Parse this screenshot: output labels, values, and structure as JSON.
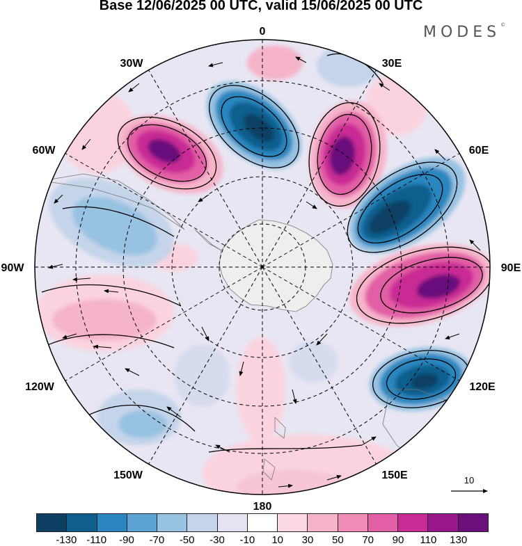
{
  "title": "Base 12/06/2025 00 UTC, valid 15/06/2025 00 UTC",
  "brand": "MODES",
  "brand_mark": "©",
  "longitude_labels": {
    "lon_0": "0",
    "lon_30e": "30E",
    "lon_60e": "60E",
    "lon_90e": "90E",
    "lon_120e": "120E",
    "lon_150e": "150E",
    "lon_180": "180",
    "lon_150w": "150W",
    "lon_120w": "120W",
    "lon_90w": "90W",
    "lon_60w": "60W",
    "lon_30w": "30W"
  },
  "vector_reference": {
    "label": "10"
  },
  "colorbar": {
    "colors": [
      "#0d3f63",
      "#0f5e8e",
      "#2b86bf",
      "#5ca4d3",
      "#97c2e2",
      "#c5d4ea",
      "#e5e3f1",
      "#ffffff",
      "#fbd8e2",
      "#f6b4cb",
      "#f08bb6",
      "#e25ea5",
      "#c92b94",
      "#991789",
      "#6a0f7c"
    ],
    "tick_labels": [
      "-130",
      "-110",
      "-90",
      "-70",
      "-50",
      "-30",
      "-10",
      "10",
      "30",
      "50",
      "70",
      "90",
      "110",
      "130"
    ]
  },
  "anomaly_centers": [
    {
      "name": "anticyclonic-30w",
      "value": 120
    },
    {
      "name": "cyclonic-0",
      "value": -125
    },
    {
      "name": "anticyclonic-30e",
      "value": 130
    },
    {
      "name": "cyclonic-60e",
      "value": -125
    },
    {
      "name": "anticyclonic-90e",
      "value": 125
    },
    {
      "name": "cyclonic-120e",
      "value": -120
    },
    {
      "name": "cyclonic-75w",
      "value": -60
    },
    {
      "name": "anticyclonic-105w",
      "value": 50
    },
    {
      "name": "cyclonic-150w",
      "value": -45
    },
    {
      "name": "anticyclonic-180",
      "value": 45
    }
  ]
}
